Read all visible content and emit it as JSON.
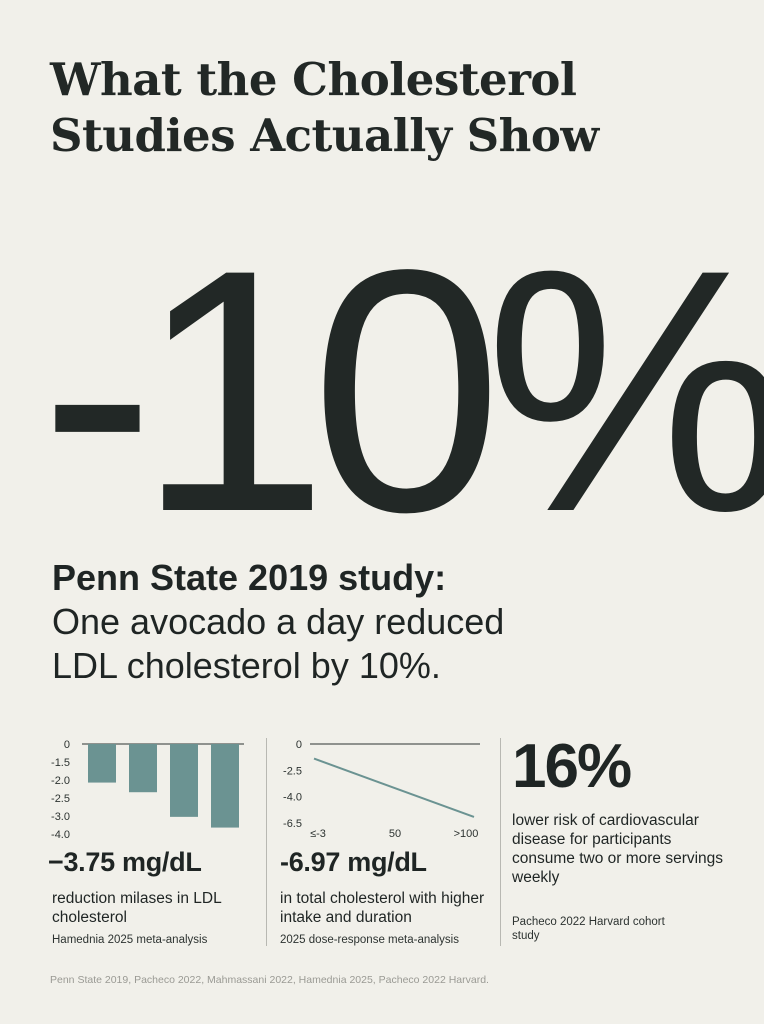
{
  "title_line1": "What the Cholesterol",
  "title_line2": "Studies Actually Show",
  "hero": {
    "stat": "-10%",
    "lead": "Penn State 2019 study:",
    "body_line1": "One avocado a day reduced",
    "body_line2": "LDL cholesterol by 10%."
  },
  "colors": {
    "bar": "#6b9392",
    "line": "#6b9392",
    "text": "#1f2524",
    "background": "#f1f0ea"
  },
  "chart_data": [
    {
      "type": "bar",
      "categories": [
        "",
        "",
        "",
        ""
      ],
      "values": [
        -1.8,
        -2.25,
        -3.4,
        -3.9
      ],
      "y_ticks": [
        "0",
        "-1.5",
        "-2.0",
        "-2.5",
        "-3.0",
        "-4.0"
      ],
      "ylim": [
        -4.2,
        0
      ],
      "grid": false,
      "stat": "−3.75 mg/dL",
      "description": "reduction milases in LDL cholesterol",
      "source": "Hamednia 2025 meta-analysis"
    },
    {
      "type": "line",
      "x_ticks": [
        "≤-3",
        "50",
        ">100"
      ],
      "y_ticks": [
        "0",
        "-2.5",
        "-4.0",
        "-6.5"
      ],
      "series": [
        {
          "values": [
            -1.2,
            -6.0
          ]
        }
      ],
      "grid": false,
      "stat": "-6.97 mg/dL",
      "description": "in total cholesterol with higher intake and duration",
      "source": "2025 dose-response meta-analysis"
    }
  ],
  "panel_c": {
    "stat": "16%",
    "description": "lower risk of cardiovascular disease for participants consume two or more servings weekly",
    "source": "Pacheco 2022 Harvard cohort study"
  },
  "footer": "Penn State 2019, Pacheco 2022, Mahmassani 2022, Hamednia 2025, Pacheco 2022 Harvard."
}
